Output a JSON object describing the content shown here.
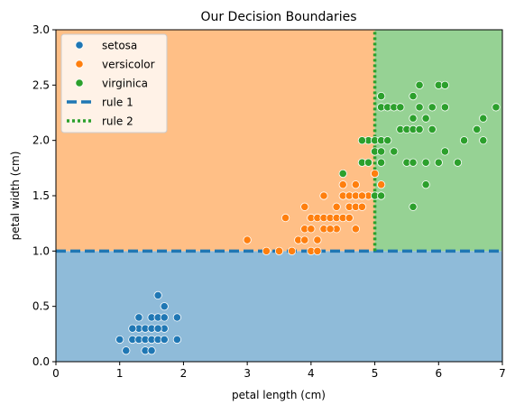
{
  "chart_data": {
    "type": "scatter",
    "title": "Our Decision Boundaries",
    "xlabel": "petal length (cm)",
    "ylabel": "petal width (cm)",
    "xlim": [
      0,
      7
    ],
    "ylim": [
      0,
      3.0
    ],
    "xticks": [
      0,
      1,
      2,
      3,
      4,
      5,
      6,
      7
    ],
    "xtick_labels": [
      "0",
      "1",
      "2",
      "3",
      "4",
      "5",
      "6",
      "7"
    ],
    "yticks": [
      0,
      0.5,
      1.0,
      1.5,
      2.0,
      2.5,
      3.0
    ],
    "ytick_labels": [
      "0.0",
      "0.5",
      "1.0",
      "1.5",
      "2.0",
      "2.5",
      "3.0"
    ],
    "grid": false,
    "legend_position": "top-left",
    "regions": [
      {
        "name": "setosa-region",
        "x": [
          0,
          7
        ],
        "y": [
          0,
          1.0
        ],
        "color": "#8fbbd9"
      },
      {
        "name": "versicolor-region",
        "x": [
          0,
          5
        ],
        "y": [
          1.0,
          3.0
        ],
        "color": "#ffbf86"
      },
      {
        "name": "virginica-region",
        "x": [
          5,
          7
        ],
        "y": [
          1.0,
          3.0
        ],
        "color": "#96d294"
      }
    ],
    "rules": [
      {
        "name": "rule 1",
        "orientation": "horizontal",
        "value": 1.0,
        "style": "dashed",
        "color": "#1f77b4"
      },
      {
        "name": "rule 2",
        "orientation": "vertical",
        "value": 5.0,
        "y_range": [
          1.0,
          3.0
        ],
        "style": "dotted",
        "color": "#2ca02c"
      }
    ],
    "series": [
      {
        "name": "setosa",
        "color": "#1f77b4",
        "points": [
          [
            1.0,
            0.2
          ],
          [
            1.1,
            0.1
          ],
          [
            1.2,
            0.2
          ],
          [
            1.3,
            0.2
          ],
          [
            1.3,
            0.3
          ],
          [
            1.3,
            0.4
          ],
          [
            1.4,
            0.1
          ],
          [
            1.4,
            0.2
          ],
          [
            1.4,
            0.3
          ],
          [
            1.5,
            0.1
          ],
          [
            1.5,
            0.2
          ],
          [
            1.5,
            0.4
          ],
          [
            1.6,
            0.2
          ],
          [
            1.6,
            0.4
          ],
          [
            1.6,
            0.6
          ],
          [
            1.7,
            0.2
          ],
          [
            1.7,
            0.3
          ],
          [
            1.7,
            0.4
          ],
          [
            1.7,
            0.5
          ],
          [
            1.9,
            0.2
          ],
          [
            1.9,
            0.4
          ],
          [
            1.5,
            0.3
          ],
          [
            1.6,
            0.3
          ],
          [
            1.2,
            0.3
          ]
        ]
      },
      {
        "name": "versicolor",
        "color": "#ff7f0e",
        "points": [
          [
            3.0,
            1.1
          ],
          [
            3.3,
            1.0
          ],
          [
            3.5,
            1.0
          ],
          [
            3.6,
            1.3
          ],
          [
            3.7,
            1.0
          ],
          [
            3.8,
            1.1
          ],
          [
            3.9,
            1.1
          ],
          [
            3.9,
            1.2
          ],
          [
            3.9,
            1.4
          ],
          [
            4.0,
            1.0
          ],
          [
            4.0,
            1.2
          ],
          [
            4.0,
            1.3
          ],
          [
            4.1,
            1.0
          ],
          [
            4.1,
            1.3
          ],
          [
            4.2,
            1.2
          ],
          [
            4.2,
            1.3
          ],
          [
            4.2,
            1.5
          ],
          [
            4.3,
            1.3
          ],
          [
            4.4,
            1.2
          ],
          [
            4.4,
            1.3
          ],
          [
            4.4,
            1.4
          ],
          [
            4.5,
            1.3
          ],
          [
            4.5,
            1.5
          ],
          [
            4.5,
            1.6
          ],
          [
            4.6,
            1.3
          ],
          [
            4.6,
            1.4
          ],
          [
            4.6,
            1.5
          ],
          [
            4.7,
            1.2
          ],
          [
            4.7,
            1.4
          ],
          [
            4.7,
            1.5
          ],
          [
            4.7,
            1.6
          ],
          [
            4.8,
            1.4
          ],
          [
            4.8,
            1.8
          ],
          [
            4.9,
            1.5
          ],
          [
            5.0,
            1.7
          ],
          [
            5.1,
            1.6
          ],
          [
            4.8,
            1.5
          ],
          [
            4.1,
            1.1
          ],
          [
            4.3,
            1.2
          ]
        ]
      },
      {
        "name": "virginica",
        "color": "#2ca02c",
        "points": [
          [
            4.5,
            1.7
          ],
          [
            4.8,
            1.8
          ],
          [
            4.9,
            1.8
          ],
          [
            4.9,
            2.0
          ],
          [
            5.0,
            1.5
          ],
          [
            5.0,
            1.9
          ],
          [
            5.0,
            2.0
          ],
          [
            5.1,
            1.5
          ],
          [
            5.1,
            1.8
          ],
          [
            5.1,
            1.9
          ],
          [
            5.1,
            2.0
          ],
          [
            5.1,
            2.3
          ],
          [
            5.1,
            2.4
          ],
          [
            5.2,
            2.0
          ],
          [
            5.2,
            2.3
          ],
          [
            5.3,
            1.9
          ],
          [
            5.3,
            2.3
          ],
          [
            5.4,
            2.1
          ],
          [
            5.4,
            2.3
          ],
          [
            5.5,
            1.8
          ],
          [
            5.5,
            2.1
          ],
          [
            5.6,
            1.4
          ],
          [
            5.6,
            1.8
          ],
          [
            5.6,
            2.1
          ],
          [
            5.6,
            2.2
          ],
          [
            5.6,
            2.4
          ],
          [
            5.7,
            2.1
          ],
          [
            5.7,
            2.3
          ],
          [
            5.7,
            2.5
          ],
          [
            5.8,
            1.6
          ],
          [
            5.8,
            1.8
          ],
          [
            5.8,
            2.2
          ],
          [
            5.9,
            2.1
          ],
          [
            5.9,
            2.3
          ],
          [
            6.0,
            1.8
          ],
          [
            6.0,
            2.5
          ],
          [
            6.1,
            1.9
          ],
          [
            6.1,
            2.3
          ],
          [
            6.1,
            2.5
          ],
          [
            6.3,
            1.8
          ],
          [
            6.4,
            2.0
          ],
          [
            6.6,
            2.1
          ],
          [
            6.7,
            2.0
          ],
          [
            6.7,
            2.2
          ],
          [
            6.9,
            2.3
          ],
          [
            4.8,
            2.0
          ]
        ]
      }
    ],
    "legend": [
      {
        "label": "setosa",
        "kind": "marker",
        "color": "#1f77b4"
      },
      {
        "label": "versicolor",
        "kind": "marker",
        "color": "#ff7f0e"
      },
      {
        "label": "virginica",
        "kind": "marker",
        "color": "#2ca02c"
      },
      {
        "label": "rule 1",
        "kind": "dashed-line",
        "color": "#1f77b4"
      },
      {
        "label": "rule 2",
        "kind": "dotted-line",
        "color": "#2ca02c"
      }
    ]
  }
}
